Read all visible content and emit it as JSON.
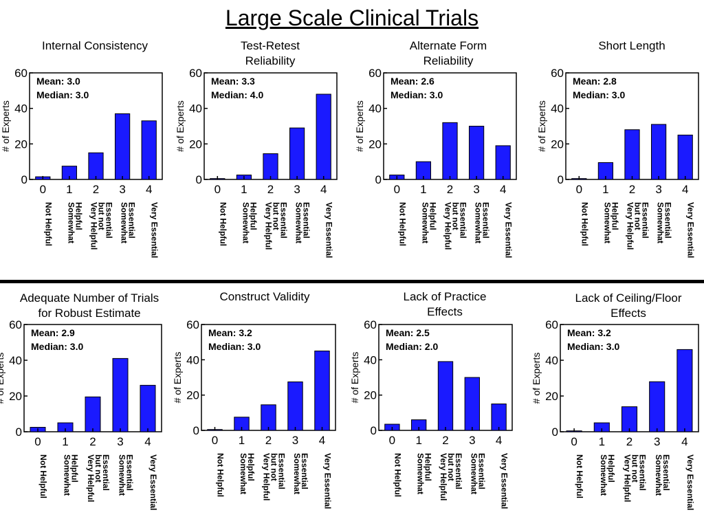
{
  "title": "Large Scale Clinical Trials",
  "colors": {
    "bar": "#1a1aff",
    "axis": "#000000"
  },
  "chart_data": [
    {
      "type": "bar",
      "title": [
        "Internal Consistency"
      ],
      "mean_label": "Mean:  3.0",
      "median_label": "Median:  3.0",
      "ylabel": "# of Experts",
      "ylim": [
        0,
        60
      ],
      "yticks": [
        0,
        20,
        40,
        60
      ],
      "categories": [
        "0",
        "1",
        "2",
        "3",
        "4"
      ],
      "category_labels": [
        [
          "Not Helpful"
        ],
        [
          "Somewhat",
          "Helpful"
        ],
        [
          "Very Helpful",
          "but not",
          "Essential"
        ],
        [
          "Somewhat",
          "Essential"
        ],
        [
          "Very Essential"
        ]
      ],
      "values": [
        1.5,
        7.5,
        15,
        37,
        33
      ]
    },
    {
      "type": "bar",
      "title": [
        "Test-Retest",
        "Reliability"
      ],
      "mean_label": "Mean:  3.3",
      "median_label": "Median:  4.0",
      "ylabel": "# of Experts",
      "ylim": [
        0,
        60
      ],
      "yticks": [
        0,
        20,
        40,
        60
      ],
      "categories": [
        "0",
        "1",
        "2",
        "3",
        "4"
      ],
      "category_labels": [
        [
          "Not Helpful"
        ],
        [
          "Somewhat",
          "Helpful"
        ],
        [
          "Very Helpful",
          "but not",
          "Essential"
        ],
        [
          "Somewhat",
          "Essential"
        ],
        [
          "Very Essential"
        ]
      ],
      "values": [
        0.5,
        2.5,
        14.5,
        29,
        48
      ]
    },
    {
      "type": "bar",
      "title": [
        "Alternate Form",
        "Reliability"
      ],
      "mean_label": "Mean:  2.6",
      "median_label": "Median:  3.0",
      "ylabel": "# of Experts",
      "ylim": [
        0,
        60
      ],
      "yticks": [
        0,
        20,
        40,
        60
      ],
      "categories": [
        "0",
        "1",
        "2",
        "3",
        "4"
      ],
      "category_labels": [
        [
          "Not Helpful"
        ],
        [
          "Somewhat",
          "Helpful"
        ],
        [
          "Very Helpful",
          "but not",
          "Essential"
        ],
        [
          "Somewhat",
          "Essential"
        ],
        [
          "Very Essential"
        ]
      ],
      "values": [
        2.5,
        10,
        32,
        30,
        19
      ]
    },
    {
      "type": "bar",
      "title": [
        "Short Length"
      ],
      "mean_label": "Mean:  2.8",
      "median_label": "Median:  3.0",
      "ylabel": "# of Experts",
      "ylim": [
        0,
        60
      ],
      "yticks": [
        0,
        20,
        40,
        60
      ],
      "categories": [
        "0",
        "1",
        "2",
        "3",
        "4"
      ],
      "category_labels": [
        [
          "Not Helpful"
        ],
        [
          "Somewhat",
          "Helpful"
        ],
        [
          "Very Helpful",
          "but not",
          "Essential"
        ],
        [
          "Somewhat",
          "Essential"
        ],
        [
          "Very Essential"
        ]
      ],
      "values": [
        0.5,
        9.5,
        28,
        31,
        25
      ]
    },
    {
      "type": "bar",
      "title": [
        "Adequate Number of Trials",
        "for Robust Estimate"
      ],
      "mean_label": "Mean:  2.9",
      "median_label": "Median:  3.0",
      "ylabel": "# of Experts",
      "ylim": [
        0,
        60
      ],
      "yticks": [
        0,
        20,
        40,
        60
      ],
      "categories": [
        "0",
        "1",
        "2",
        "3",
        "4"
      ],
      "category_labels": [
        [
          "Not Helpful"
        ],
        [
          "Somewhat",
          "Helpful"
        ],
        [
          "Very Helpful",
          "but not",
          "Essential"
        ],
        [
          "Somewhat",
          "Essential"
        ],
        [
          "Very Essential"
        ]
      ],
      "values": [
        2.5,
        5,
        19.5,
        41,
        26
      ]
    },
    {
      "type": "bar",
      "title": [
        "Construct Validity"
      ],
      "mean_label": "Mean:  3.2",
      "median_label": "Median:  3.0",
      "ylabel": "# of Experts",
      "ylim": [
        0,
        60
      ],
      "yticks": [
        0,
        20,
        40,
        60
      ],
      "categories": [
        "0",
        "1",
        "2",
        "3",
        "4"
      ],
      "category_labels": [
        [
          "Not Helpful"
        ],
        [
          "Somewhat",
          "Helpful"
        ],
        [
          "Very Helpful",
          "but not",
          "Essential"
        ],
        [
          "Somewhat",
          "Essential"
        ],
        [
          "Very Essential"
        ]
      ],
      "values": [
        0.5,
        7.5,
        14.5,
        27.5,
        45
      ]
    },
    {
      "type": "bar",
      "title": [
        "Lack of Practice",
        "Effects"
      ],
      "mean_label": "Mean:  2.5",
      "median_label": "Median:  2.0",
      "ylabel": "# of Experts",
      "ylim": [
        0,
        60
      ],
      "yticks": [
        0,
        20,
        40,
        60
      ],
      "categories": [
        "0",
        "1",
        "2",
        "3",
        "4"
      ],
      "category_labels": [
        [
          "Not Helpful"
        ],
        [
          "Somewhat",
          "Helpful"
        ],
        [
          "Very Helpful",
          "but not",
          "Essential"
        ],
        [
          "Somewhat",
          "Essential"
        ],
        [
          "Very Essential"
        ]
      ],
      "values": [
        3.5,
        6,
        39,
        30,
        15
      ]
    },
    {
      "type": "bar",
      "title": [
        "Lack of Ceiling/Floor",
        "Effects"
      ],
      "mean_label": "Mean:  3.2",
      "median_label": "Median:  3.0",
      "ylabel": "# of Experts",
      "ylim": [
        0,
        60
      ],
      "yticks": [
        0,
        20,
        40,
        60
      ],
      "categories": [
        "0",
        "1",
        "2",
        "3",
        "4"
      ],
      "category_labels": [
        [
          "Not Helpful"
        ],
        [
          "Somewhat",
          "Helpful"
        ],
        [
          "Very Helpful",
          "but not",
          "Essential"
        ],
        [
          "Somewhat",
          "Essential"
        ],
        [
          "Very Essential"
        ]
      ],
      "values": [
        0.5,
        5,
        14,
        28,
        46
      ]
    }
  ]
}
